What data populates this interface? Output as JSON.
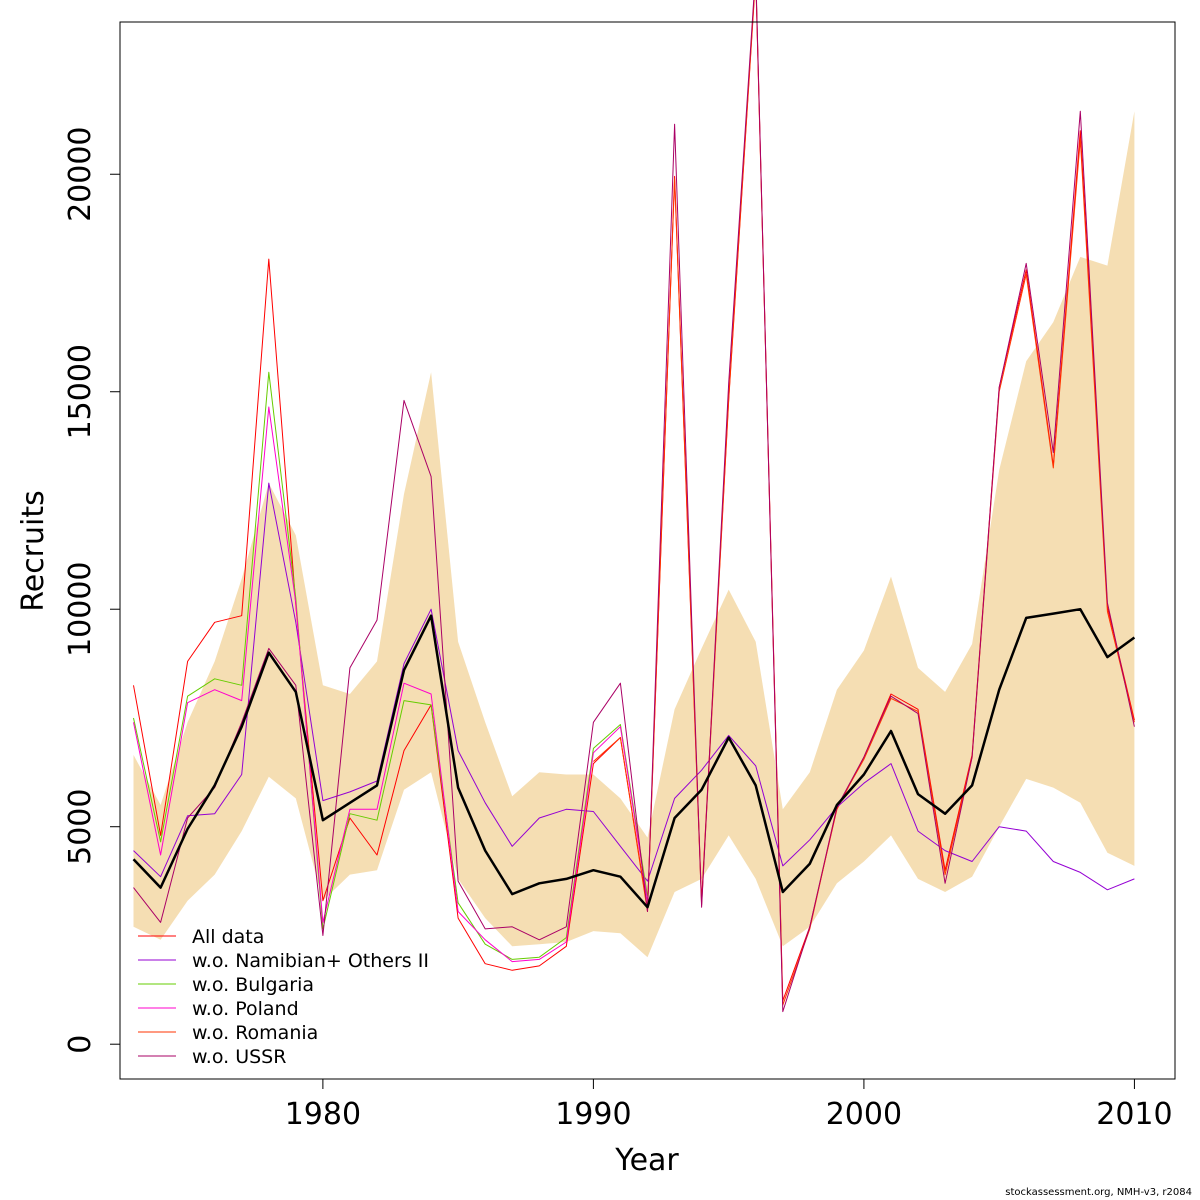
{
  "chart_data": {
    "type": "line",
    "title": "",
    "xlabel": "Year",
    "ylabel": "Recruits",
    "xlim": [
      1972.5,
      2011.5
    ],
    "ylim": [
      -800,
      23500
    ],
    "x_ticks": [
      1980,
      1990,
      2000,
      2010
    ],
    "y_ticks": [
      0,
      5000,
      10000,
      15000,
      20000
    ],
    "grid": false,
    "legend_position": "bottom-left",
    "x": [
      1973,
      1974,
      1975,
      1976,
      1977,
      1978,
      1979,
      1980,
      1981,
      1982,
      1983,
      1984,
      1985,
      1986,
      1987,
      1988,
      1989,
      1990,
      1991,
      1992,
      1993,
      1994,
      1995,
      1996,
      1997,
      1998,
      1999,
      2000,
      2001,
      2002,
      2003,
      2004,
      2005,
      2006,
      2007,
      2008,
      2009,
      2010
    ],
    "band": {
      "color": "#f5deb3",
      "lower": [
        2700,
        2400,
        3300,
        3900,
        4900,
        6150,
        5650,
        3300,
        3900,
        4000,
        5850,
        6250,
        3800,
        2900,
        2250,
        2300,
        2350,
        2600,
        2550,
        2000,
        3500,
        3800,
        4800,
        3800,
        2250,
        2700,
        3700,
        4200,
        4800,
        3800,
        3500,
        3850,
        5000,
        6100,
        5900,
        5550,
        4400,
        4100
      ],
      "upper": [
        6650,
        5500,
        7400,
        8800,
        10700,
        12900,
        11700,
        8250,
        8050,
        8800,
        12650,
        15450,
        9250,
        7400,
        5700,
        6250,
        6200,
        6200,
        5650,
        4750,
        7700,
        9100,
        10450,
        9250,
        5400,
        6250,
        8150,
        9050,
        10750,
        8650,
        8100,
        9200,
        13200,
        15700,
        16600,
        18100,
        17900,
        21450
      ]
    },
    "series": [
      {
        "name": "All data",
        "color": "#ff0000",
        "width": 1,
        "values": [
          8250,
          4800,
          8800,
          9700,
          9850,
          18050,
          10100,
          3300,
          5200,
          4350,
          6750,
          7800,
          2900,
          1850,
          1700,
          1800,
          2250,
          6450,
          7050,
          3100,
          19950,
          3300,
          14850,
          24600,
          1000,
          2700,
          5400,
          6600,
          8050,
          7700,
          4000,
          6650,
          15100,
          17800,
          13300,
          21000,
          10050,
          7450
        ]
      },
      {
        "name": "w.o. Namibian+ Others II",
        "color": "#9400d3",
        "width": 1,
        "values": [
          4450,
          3850,
          5250,
          5300,
          6200,
          12900,
          9700,
          5600,
          5800,
          6050,
          8750,
          10000,
          6750,
          5550,
          4550,
          5200,
          5400,
          5350,
          4550,
          3750,
          5650,
          6300,
          7100,
          6400,
          4100,
          4700,
          5450,
          6000,
          6450,
          4900,
          4450,
          4200,
          5000,
          4900,
          4200,
          3950,
          3550,
          3800
        ]
      },
      {
        "name": "w.o. Bulgaria",
        "color": "#66cc00",
        "width": 1,
        "values": [
          7500,
          4650,
          8000,
          8400,
          8250,
          15450,
          10250,
          2650,
          5300,
          5150,
          7900,
          7800,
          3250,
          2300,
          1950,
          2000,
          2450,
          6800,
          7350,
          3400,
          null,
          null,
          null,
          null,
          null,
          null,
          null,
          null,
          null,
          null,
          null,
          null,
          null,
          null,
          null,
          null,
          null,
          null
        ]
      },
      {
        "name": "w.o. Poland",
        "color": "#ff00cc",
        "width": 1,
        "values": [
          7400,
          4350,
          7850,
          8150,
          7900,
          14650,
          10150,
          2800,
          5400,
          5400,
          8300,
          8050,
          3050,
          2400,
          1900,
          1950,
          2350,
          6700,
          7300,
          3300,
          null,
          null,
          null,
          null,
          null,
          null,
          null,
          null,
          null,
          null,
          null,
          null,
          null,
          null,
          null,
          null,
          null,
          null
        ]
      },
      {
        "name": "w.o. Romania",
        "color": "#ff3300",
        "width": 1,
        "values": [
          null,
          null,
          null,
          null,
          null,
          null,
          null,
          null,
          null,
          null,
          null,
          null,
          null,
          null,
          null,
          null,
          null,
          6500,
          7050,
          3050,
          19900,
          3200,
          14800,
          24550,
          900,
          2650,
          5450,
          6550,
          7950,
          7650,
          3900,
          6600,
          15000,
          17700,
          13250,
          20800,
          9950,
          7400
        ]
      },
      {
        "name": "w.o. USSR",
        "color": "#aa0066",
        "width": 1,
        "values": [
          3600,
          2800,
          5200,
          5900,
          7400,
          9100,
          8250,
          2500,
          8650,
          9750,
          14800,
          13050,
          3750,
          2650,
          2700,
          2400,
          2700,
          7400,
          8300,
          3050,
          21150,
          3150,
          15200,
          24700,
          750,
          2700,
          5450,
          6600,
          8000,
          7600,
          3700,
          6600,
          15100,
          17950,
          13600,
          21450,
          10150,
          7300
        ]
      },
      {
        "name": "",
        "color": "#000000",
        "width": 2.5,
        "values": [
          4250,
          3600,
          4950,
          5950,
          7300,
          9000,
          8100,
          5150,
          5550,
          5950,
          8600,
          9850,
          5900,
          4450,
          3450,
          3700,
          3800,
          4000,
          3850,
          3150,
          5200,
          5850,
          7050,
          5950,
          3500,
          4150,
          5500,
          6200,
          7200,
          5750,
          5300,
          5950,
          8150,
          9800,
          9900,
          10000,
          8900,
          9350
        ]
      }
    ],
    "legend": [
      "All data",
      "w.o. Namibian+ Others II",
      "w.o. Bulgaria",
      "w.o. Poland",
      "w.o. Romania",
      "w.o. USSR"
    ]
  },
  "credit": "stockassessment.org, NMH-v3, r2084"
}
